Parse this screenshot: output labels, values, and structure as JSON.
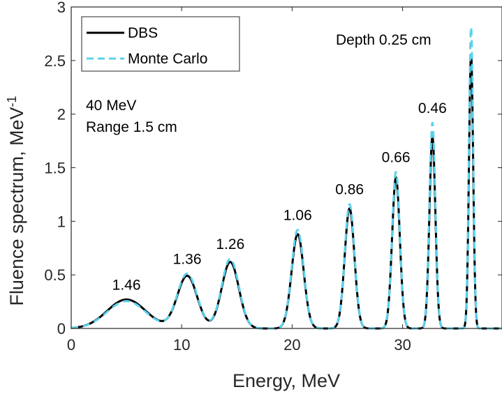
{
  "chart_data": {
    "type": "line",
    "xlabel": "Energy, MeV",
    "ylabel_main": "Fluence spectrum, MeV",
    "ylabel_sup": "-1",
    "xlim": [
      0,
      39
    ],
    "ylim": [
      0,
      3
    ],
    "xticks": [
      0,
      10,
      20,
      30
    ],
    "xtick_labels": [
      "0",
      "10",
      "20",
      "30"
    ],
    "yticks": [
      0,
      0.5,
      1,
      1.5,
      2,
      2.5,
      3
    ],
    "ytick_labels": [
      "0",
      "0.5",
      "1",
      "1.5",
      "2",
      "2.5",
      "3"
    ],
    "grid": false,
    "legend_position": "top-left",
    "annotations": {
      "energy": "40 MeV",
      "range": "Range 1.5 cm",
      "depth_header": "Depth 0.25 cm"
    },
    "series": [
      {
        "name": "DBS",
        "color": "#000000",
        "style": "solid"
      },
      {
        "name": "Monte Carlo",
        "color": "#5BD2EE",
        "style": "dashed"
      }
    ],
    "peaks": [
      {
        "depth_label": "1.46",
        "center": 5.0,
        "sigma": 1.75,
        "dbs_height": 0.27,
        "mc_height": 0.255
      },
      {
        "depth_label": "1.36",
        "center": 10.5,
        "sigma": 0.9,
        "dbs_height": 0.49,
        "mc_height": 0.51
      },
      {
        "depth_label": "1.26",
        "center": 14.4,
        "sigma": 0.78,
        "dbs_height": 0.62,
        "mc_height": 0.65
      },
      {
        "depth_label": "1.06",
        "center": 20.5,
        "sigma": 0.55,
        "dbs_height": 0.88,
        "mc_height": 0.92
      },
      {
        "depth_label": "0.86",
        "center": 25.2,
        "sigma": 0.44,
        "dbs_height": 1.12,
        "mc_height": 1.16
      },
      {
        "depth_label": "0.66",
        "center": 29.4,
        "sigma": 0.35,
        "dbs_height": 1.41,
        "mc_height": 1.46
      },
      {
        "depth_label": "0.46",
        "center": 32.7,
        "sigma": 0.27,
        "dbs_height": 1.79,
        "mc_height": 1.92
      },
      {
        "depth_label": null,
        "center": 36.2,
        "sigma": 0.19,
        "dbs_height": 2.56,
        "mc_height": 2.82
      }
    ],
    "colors": {
      "dbs": "#000000",
      "mc": "#5BD2EE",
      "axis": "#262626"
    }
  }
}
